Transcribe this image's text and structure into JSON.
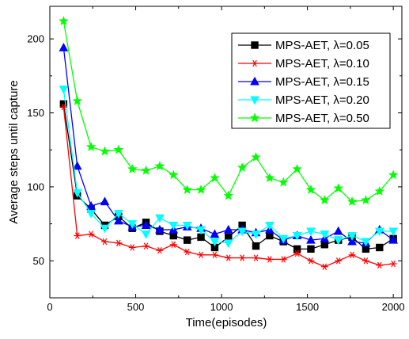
{
  "chart_data": {
    "type": "line",
    "title": "",
    "xlabel": "Time(episodes)",
    "ylabel": "Average steps until capture",
    "xlim": [
      0,
      2050
    ],
    "ylim": [
      25,
      222
    ],
    "xticks": [
      0,
      500,
      1000,
      1500,
      2000
    ],
    "yticks": [
      50,
      100,
      150,
      200
    ],
    "grid": false,
    "legend_position": "top-right",
    "x": [
      80,
      160,
      240,
      320,
      400,
      480,
      560,
      640,
      720,
      800,
      880,
      960,
      1040,
      1120,
      1200,
      1280,
      1360,
      1440,
      1520,
      1600,
      1680,
      1760,
      1840,
      1920,
      2000
    ],
    "series": [
      {
        "name": "MPS-AET, λ=0.05",
        "color": "#000000",
        "marker": "square",
        "values": [
          156,
          94,
          85,
          74,
          80,
          72,
          76,
          70,
          67,
          64,
          66,
          59,
          66,
          74,
          60,
          67,
          63,
          58,
          58,
          61,
          64,
          66,
          58,
          59,
          65
        ]
      },
      {
        "name": "MPS-AET, λ=0.10",
        "color": "#ff0000",
        "marker": "asterisk",
        "values": [
          154,
          67,
          68,
          63,
          62,
          59,
          60,
          57,
          61,
          56,
          54,
          54,
          52,
          52,
          52,
          51,
          51,
          55,
          50,
          46,
          50,
          54,
          50,
          47,
          48
        ]
      },
      {
        "name": "MPS-AET, λ=0.15",
        "color": "#0000ff",
        "marker": "triangle-up",
        "values": [
          194,
          114,
          87,
          90,
          77,
          73,
          74,
          71,
          71,
          73,
          72,
          68,
          71,
          71,
          69,
          71,
          64,
          67,
          64,
          65,
          70,
          63,
          62,
          71,
          64
        ]
      },
      {
        "name": "MPS-AET, λ=0.20",
        "color": "#00ffff",
        "marker": "triangle-down",
        "values": [
          166,
          96,
          82,
          72,
          82,
          75,
          68,
          79,
          74,
          74,
          71,
          63,
          62,
          70,
          68,
          74,
          65,
          67,
          70,
          68,
          64,
          67,
          63,
          70,
          70
        ]
      },
      {
        "name": "MPS-AET, λ=0.50",
        "color": "#00ff00",
        "marker": "star",
        "values": [
          212,
          158,
          127,
          124,
          125,
          112,
          111,
          114,
          108,
          98,
          98,
          106,
          94,
          113,
          120,
          106,
          103,
          112,
          98,
          91,
          99,
          90,
          91,
          97,
          108
        ]
      }
    ]
  }
}
